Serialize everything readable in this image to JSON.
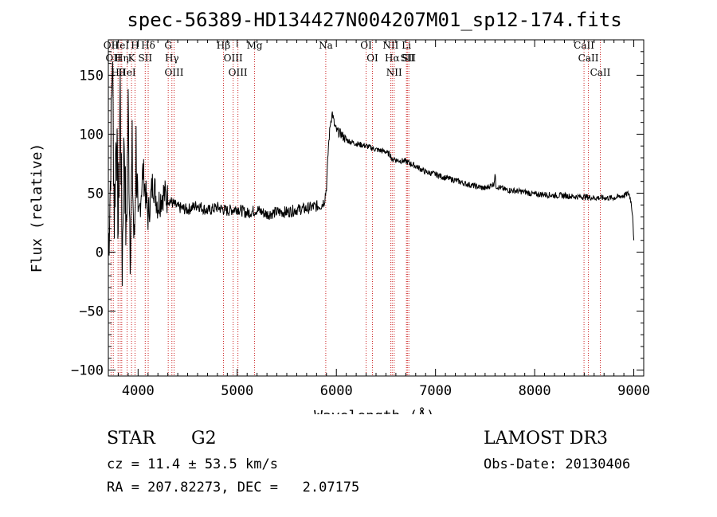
{
  "chart_data": {
    "type": "line",
    "title": "spec-56389-HD134427N004207M01_sp12-174.fits",
    "xlabel": "Wavelength (Å)",
    "ylabel": "Flux (relative)",
    "xlim": [
      3700,
      9100
    ],
    "ylim": [
      -105,
      180
    ],
    "xticks": [
      4000,
      5000,
      6000,
      7000,
      8000,
      9000
    ],
    "yticks": [
      -100,
      -50,
      0,
      50,
      100,
      150
    ],
    "grid": false,
    "series": [
      {
        "name": "flux",
        "x": [
          3700,
          3720,
          3740,
          3760,
          3780,
          3800,
          3820,
          3840,
          3860,
          3880,
          3900,
          3920,
          3940,
          3960,
          3980,
          4000,
          4050,
          4100,
          4150,
          4200,
          4250,
          4300,
          4400,
          4500,
          4600,
          4700,
          4800,
          4900,
          5000,
          5100,
          5200,
          5300,
          5400,
          5500,
          5600,
          5700,
          5800,
          5850,
          5880,
          5900,
          5920,
          5940,
          5960,
          5980,
          6000,
          6050,
          6100,
          6200,
          6300,
          6400,
          6500,
          6550,
          6563,
          6580,
          6600,
          6700,
          6800,
          6900,
          7000,
          7100,
          7200,
          7300,
          7400,
          7500,
          7590,
          7600,
          7610,
          7700,
          7800,
          7900,
          8000,
          8100,
          8200,
          8300,
          8400,
          8500,
          8600,
          8700,
          8800,
          8900,
          8950,
          8970,
          8990,
          9000
        ],
        "values": [
          0,
          60,
          170,
          30,
          110,
          20,
          140,
          -10,
          100,
          5,
          120,
          10,
          80,
          0,
          90,
          20,
          70,
          30,
          60,
          40,
          50,
          45,
          38,
          36,
          40,
          35,
          38,
          35,
          37,
          33,
          36,
          32,
          34,
          34,
          36,
          37,
          39,
          40,
          44,
          55,
          90,
          110,
          118,
          108,
          103,
          100,
          95,
          92,
          90,
          87,
          85,
          82,
          77,
          80,
          78,
          77,
          73,
          68,
          66,
          63,
          61,
          58,
          56,
          54,
          58,
          66,
          56,
          53,
          52,
          51,
          49,
          49,
          48,
          48,
          47,
          47,
          46,
          46,
          46,
          48,
          50,
          44,
          30,
          8
        ]
      }
    ],
    "lines": [
      {
        "wl": 3727,
        "label": "OII"
      },
      {
        "wl": 3750,
        "label": "OII"
      },
      {
        "wl": 3798,
        "label": "Hθ"
      },
      {
        "wl": 3820,
        "label": "HeI"
      },
      {
        "wl": 3835,
        "label": "Hη"
      },
      {
        "wl": 3889,
        "label": "HeI"
      },
      {
        "wl": 3934,
        "label": "K"
      },
      {
        "wl": 3969,
        "label": "H"
      },
      {
        "wl": 4072,
        "label": "SII"
      },
      {
        "wl": 4102,
        "label": "Hδ"
      },
      {
        "wl": 4304,
        "label": "G"
      },
      {
        "wl": 4341,
        "label": "Hγ"
      },
      {
        "wl": 4363,
        "label": "OIII"
      },
      {
        "wl": 4861,
        "label": "Hβ"
      },
      {
        "wl": 4959,
        "label": "OIII"
      },
      {
        "wl": 5007,
        "label": "OIII"
      },
      {
        "wl": 5175,
        "label": "Mg"
      },
      {
        "wl": 5893,
        "label": "Na"
      },
      {
        "wl": 6300,
        "label": "OI"
      },
      {
        "wl": 6364,
        "label": "OI"
      },
      {
        "wl": 6548,
        "label": "NII"
      },
      {
        "wl": 6563,
        "label": "Hα"
      },
      {
        "wl": 6583,
        "label": "NII"
      },
      {
        "wl": 6707,
        "label": "Li"
      },
      {
        "wl": 6716,
        "label": "SII"
      },
      {
        "wl": 6731,
        "label": "SII"
      },
      {
        "wl": 8498,
        "label": "CaII"
      },
      {
        "wl": 8542,
        "label": "CaII"
      },
      {
        "wl": 8662,
        "label": "CaII"
      }
    ]
  },
  "info": {
    "class": "STAR",
    "subclass": "G2",
    "survey": "LAMOST DR3",
    "cz_line": "cz = 11.4 ± 53.5 km/s",
    "obs_date": "Obs-Date: 20130406",
    "radec": "RA = 207.82273, DEC =   2.07175"
  }
}
